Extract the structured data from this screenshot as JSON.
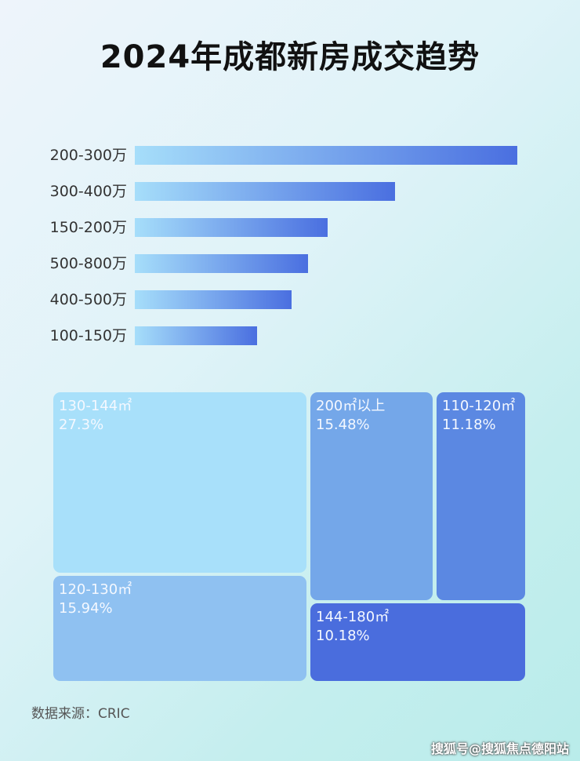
{
  "chart_data": [
    {
      "type": "bar",
      "orientation": "horizontal",
      "title": "2024年成都新房成交趋势",
      "categories": [
        "200-300万",
        "300-400万",
        "150-200万",
        "500-800万",
        "400-500万",
        "100-150万"
      ],
      "values": [
        100,
        68,
        50.4,
        45.3,
        41,
        32
      ],
      "value_axis_shown": false,
      "grid": false,
      "bar_gradient": [
        "#a6defa",
        "#4a6fe0"
      ]
    },
    {
      "type": "treemap",
      "categories": [
        "130-144㎡",
        "120-130㎡",
        "200㎡以上",
        "110-120㎡",
        "144-180㎡"
      ],
      "labels": [
        "27.3%",
        "15.94%",
        "15.48%",
        "11.18%",
        "10.18%"
      ],
      "values": [
        27.3,
        15.94,
        15.48,
        11.18,
        10.18
      ],
      "colors": [
        "#a8e0fa",
        "#8fc1f1",
        "#74a7e9",
        "#5b88e2",
        "#4a6ddd"
      ]
    }
  ],
  "footer": {
    "source": "数据来源：CRIC",
    "watermark": "搜狐号@搜狐焦点德阳站"
  }
}
